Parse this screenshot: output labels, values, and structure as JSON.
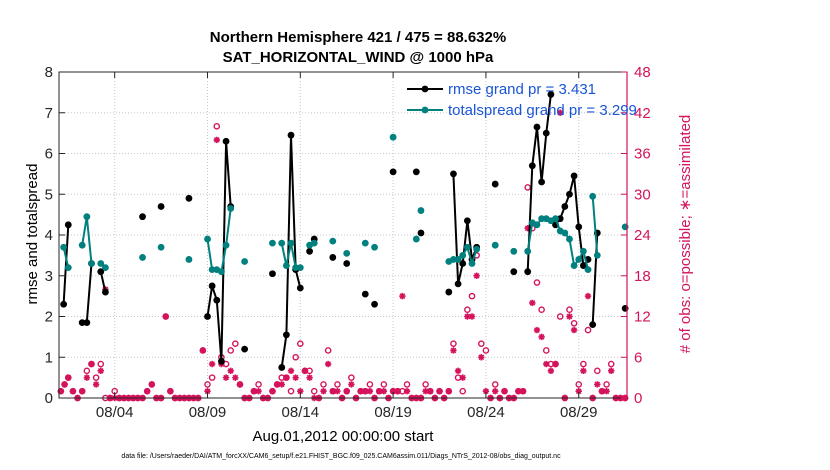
{
  "chart_data": {
    "type": "line",
    "title": "Northern Hemisphere 421 / 475 = 88.632%",
    "subtitle": "SAT_HORIZONTAL_WIND @ 1000 hPa",
    "xlabel": "Aug.01,2012 00:00:00 start",
    "ylabel": "rmse and totalspread",
    "y2label": "# of obs: o=possible; ∗=assimilated",
    "footer": "data file: /Users/raeder/DAI/ATM_forcXX/CAM6_setup/f.e21.FHIST_BGC.f09_025.CAM6assim.011/Diags_NTrS_2012-08/obs_diag_output.nc",
    "xlim": [
      1,
      31.6
    ],
    "xticks": [
      4,
      9,
      14,
      19,
      24,
      29
    ],
    "xticklabels": [
      "08/04",
      "08/09",
      "08/14",
      "08/19",
      "08/24",
      "08/29"
    ],
    "ylim": [
      0,
      8
    ],
    "yticks": [
      0,
      1,
      2,
      3,
      4,
      5,
      6,
      7,
      8
    ],
    "y2lim": [
      0,
      48
    ],
    "y2ticks": [
      0,
      6,
      12,
      18,
      24,
      30,
      36,
      42,
      48
    ],
    "grid": "dotted",
    "legend_position": "top-right",
    "colors": {
      "rmse": "#000000",
      "spread": "#00807f",
      "obs": "#d4135c",
      "legend_text": "#1a55d6"
    },
    "series": [
      {
        "name": "rmse grand pr = 3.431",
        "x": [
          1.25,
          1.5,
          2.25,
          2.5,
          2.75,
          3.0,
          3.25,
          3.5,
          3.75,
          5.5,
          6.5,
          8.0,
          9.0,
          9.25,
          9.5,
          9.75,
          10.0,
          10.25,
          10.5,
          11.0,
          12.5,
          13.0,
          13.25,
          13.5,
          13.75,
          14.0,
          14.25,
          14.5,
          14.75,
          15.25,
          15.75,
          16.5,
          17.5,
          18.0,
          19.0,
          19.5,
          20.25,
          20.5,
          22.0,
          22.25,
          22.5,
          22.75,
          23.0,
          23.25,
          23.5,
          24.5,
          25.5,
          26.25,
          26.5,
          26.75,
          27.0,
          27.25,
          27.5,
          27.75,
          28.0,
          28.25,
          28.5,
          28.75,
          29.0,
          29.25,
          29.5,
          29.75,
          30.0,
          30.5,
          31.5
        ],
        "y": [
          2.3,
          4.25,
          1.85,
          1.85,
          3.3,
          null,
          3.1,
          2.6,
          null,
          4.45,
          4.7,
          4.9,
          2.0,
          2.75,
          2.4,
          0.9,
          6.3,
          4.7,
          null,
          1.2,
          3.05,
          0.75,
          1.55,
          6.45,
          3.15,
          2.7,
          null,
          3.6,
          3.9,
          null,
          3.45,
          3.3,
          2.55,
          2.3,
          5.55,
          null,
          5.55,
          4.05,
          2.6,
          5.5,
          2.8,
          3.3,
          4.35,
          3.4,
          3.7,
          5.25,
          3.1,
          3.1,
          5.7,
          6.65,
          5.3,
          6.5,
          7.45,
          4.25,
          4.4,
          4.7,
          5.0,
          5.45,
          4.2,
          3.25,
          3.4,
          1.8,
          4.05,
          null,
          2.2
        ],
        "connect": [
          false,
          true,
          false,
          true,
          true,
          true,
          true,
          true,
          false,
          false,
          false,
          false,
          false,
          true,
          true,
          true,
          true,
          true,
          false,
          false,
          false,
          false,
          true,
          true,
          true,
          true,
          false,
          false,
          false,
          false,
          false,
          false,
          false,
          false,
          false,
          false,
          false,
          false,
          false,
          false,
          true,
          true,
          true,
          true,
          true,
          false,
          false,
          false,
          true,
          true,
          true,
          true,
          true,
          false,
          true,
          true,
          true,
          true,
          true,
          true,
          true,
          false,
          true,
          false,
          false
        ]
      },
      {
        "name": "totalspread grand pr = 3.299",
        "x": [
          1.25,
          1.5,
          2.25,
          2.5,
          2.75,
          3.0,
          3.25,
          3.5,
          3.75,
          5.5,
          6.5,
          8.0,
          9.0,
          9.25,
          9.5,
          9.75,
          10.0,
          10.25,
          10.5,
          11.0,
          12.5,
          13.0,
          13.25,
          13.5,
          13.75,
          14.0,
          14.25,
          14.5,
          14.75,
          15.25,
          15.75,
          16.5,
          17.5,
          18.0,
          19.0,
          19.5,
          20.25,
          20.5,
          22.0,
          22.25,
          22.5,
          22.75,
          23.0,
          23.25,
          23.5,
          24.5,
          25.5,
          26.25,
          26.5,
          26.75,
          27.0,
          27.25,
          27.5,
          27.75,
          28.0,
          28.25,
          28.5,
          28.75,
          29.0,
          29.25,
          29.5,
          29.75,
          30.0,
          30.5,
          31.5
        ],
        "y": [
          3.7,
          3.2,
          3.75,
          4.45,
          3.3,
          null,
          3.3,
          3.2,
          null,
          3.45,
          3.7,
          3.4,
          3.9,
          3.15,
          3.15,
          3.1,
          3.75,
          4.65,
          null,
          3.35,
          3.8,
          3.8,
          3.25,
          3.8,
          3.2,
          3.2,
          null,
          3.75,
          3.8,
          null,
          3.85,
          3.55,
          3.8,
          3.7,
          6.4,
          null,
          3.9,
          4.6,
          3.35,
          3.4,
          3.4,
          3.5,
          3.7,
          3.3,
          3.65,
          3.75,
          3.6,
          3.6,
          4.3,
          4.25,
          4.4,
          4.4,
          4.35,
          4.4,
          4.1,
          4.05,
          3.9,
          3.25,
          3.4,
          3.6,
          3.15,
          4.95,
          3.5,
          null,
          4.2
        ],
        "connect": [
          false,
          true,
          false,
          true,
          true,
          true,
          true,
          true,
          false,
          false,
          false,
          false,
          false,
          true,
          true,
          true,
          true,
          true,
          false,
          false,
          false,
          false,
          true,
          true,
          true,
          true,
          false,
          false,
          false,
          false,
          false,
          false,
          false,
          false,
          false,
          false,
          false,
          false,
          false,
          false,
          true,
          true,
          true,
          true,
          true,
          false,
          false,
          false,
          true,
          true,
          true,
          true,
          true,
          false,
          true,
          true,
          true,
          true,
          true,
          true,
          true,
          false,
          true,
          false,
          false
        ]
      }
    ],
    "obs_possible": {
      "x": [
        1.1,
        1.3,
        1.5,
        1.75,
        2.0,
        2.25,
        2.5,
        2.75,
        3.0,
        3.25,
        3.5,
        3.75,
        4.0,
        4.25,
        4.5,
        4.75,
        5.0,
        5.25,
        5.5,
        5.75,
        6.0,
        6.25,
        6.5,
        6.75,
        7.0,
        7.25,
        7.5,
        7.75,
        8.0,
        8.25,
        8.5,
        8.75,
        9.0,
        9.25,
        9.5,
        9.75,
        10.0,
        10.25,
        10.5,
        10.75,
        11.0,
        11.25,
        11.5,
        11.75,
        12.0,
        12.25,
        12.5,
        12.75,
        13.0,
        13.25,
        13.5,
        13.75,
        14.0,
        14.25,
        14.5,
        14.75,
        15.0,
        15.25,
        15.5,
        15.75,
        16.0,
        16.25,
        16.5,
        16.75,
        17.0,
        17.25,
        17.5,
        17.75,
        18.0,
        18.25,
        18.5,
        18.75,
        19.0,
        19.25,
        19.5,
        19.75,
        20.0,
        20.25,
        20.5,
        20.75,
        21.0,
        21.25,
        21.5,
        21.75,
        22.0,
        22.25,
        22.5,
        22.75,
        23.0,
        23.25,
        23.5,
        23.75,
        24.0,
        24.25,
        24.5,
        24.75,
        25.0,
        25.25,
        25.5,
        25.75,
        26.0,
        26.25,
        26.5,
        26.75,
        27.0,
        27.25,
        27.5,
        27.75,
        28.0,
        28.25,
        28.5,
        28.75,
        29.0,
        29.25,
        29.5,
        29.75,
        30.0,
        30.25,
        30.5,
        30.75,
        31.0,
        31.25,
        31.5
      ],
      "y": [
        1,
        2,
        3,
        1,
        0,
        1,
        4,
        5,
        3,
        5,
        0,
        0,
        1,
        0,
        0,
        0,
        0,
        0,
        0,
        1,
        2,
        0,
        0,
        12,
        1,
        0,
        0,
        0,
        0,
        0,
        0,
        7,
        2,
        3,
        40,
        6,
        5,
        7,
        8,
        2,
        0,
        0,
        1,
        2,
        0,
        0,
        1,
        2,
        3,
        3,
        1,
        6,
        8,
        4,
        4,
        1,
        0,
        2,
        7,
        1,
        2,
        0,
        1,
        3,
        0,
        1,
        1,
        2,
        0,
        1,
        2,
        0,
        1,
        1,
        1,
        2,
        0,
        0,
        0,
        2,
        1,
        0,
        1,
        0,
        1,
        8,
        3,
        1,
        13,
        15,
        21,
        8,
        7,
        0,
        2,
        0,
        1,
        0,
        0,
        1,
        1,
        31,
        25,
        17,
        13,
        7,
        5,
        5,
        12,
        0,
        13,
        11,
        2,
        5,
        10,
        0,
        4,
        1,
        2,
        5,
        0,
        0,
        0
      ]
    },
    "obs_assimilated": {
      "x": [
        1.1,
        1.3,
        1.5,
        1.75,
        2.0,
        2.25,
        2.5,
        2.75,
        3.0,
        3.25,
        3.5,
        3.75,
        4.0,
        4.25,
        4.5,
        4.75,
        5.0,
        5.25,
        5.5,
        5.75,
        6.0,
        6.25,
        6.5,
        6.75,
        7.0,
        7.25,
        7.5,
        7.75,
        8.0,
        8.25,
        8.5,
        8.75,
        9.0,
        9.25,
        9.5,
        9.75,
        10.0,
        10.25,
        10.5,
        10.75,
        11.0,
        11.25,
        11.5,
        11.75,
        12.0,
        12.25,
        12.5,
        12.75,
        13.0,
        13.25,
        13.5,
        13.75,
        14.0,
        14.25,
        14.5,
        14.75,
        15.0,
        15.25,
        15.5,
        15.75,
        16.0,
        16.25,
        16.5,
        16.75,
        17.0,
        17.25,
        17.5,
        17.75,
        18.0,
        18.25,
        18.5,
        18.75,
        19.0,
        19.25,
        19.5,
        19.75,
        20.0,
        20.25,
        20.5,
        20.75,
        21.0,
        21.25,
        21.5,
        21.75,
        22.0,
        22.25,
        22.5,
        22.75,
        23.0,
        23.25,
        23.5,
        23.75,
        24.0,
        24.25,
        24.5,
        24.75,
        25.0,
        25.25,
        25.5,
        25.75,
        26.0,
        26.25,
        26.5,
        26.75,
        27.0,
        27.25,
        27.5,
        27.75,
        28.0,
        28.25,
        28.5,
        28.75,
        29.0,
        29.25,
        29.5,
        29.75,
        30.0,
        30.25,
        30.5,
        30.75,
        31.0,
        31.25,
        31.5
      ],
      "y": [
        1,
        2,
        3,
        1,
        0,
        1,
        3,
        5,
        2,
        4,
        16,
        0,
        0,
        0,
        0,
        0,
        0,
        0,
        0,
        1,
        2,
        0,
        0,
        12,
        1,
        0,
        0,
        0,
        0,
        0,
        0,
        7,
        1,
        5,
        38,
        5,
        3,
        4,
        3,
        2,
        0,
        0,
        1,
        1,
        0,
        0,
        1,
        2,
        2,
        3,
        4,
        3,
        1,
        4,
        3,
        0,
        0,
        1,
        5,
        1,
        1,
        0,
        1,
        2,
        0,
        1,
        1,
        1,
        0,
        1,
        1,
        0,
        1,
        1,
        15,
        1,
        0,
        0,
        0,
        1,
        1,
        0,
        1,
        0,
        1,
        7,
        4,
        3,
        12,
        12,
        18,
        6,
        1,
        0,
        1,
        0,
        1,
        0,
        0,
        1,
        1,
        25,
        14,
        10,
        9,
        5,
        4,
        5,
        42,
        0,
        12,
        10,
        1,
        4,
        15,
        0,
        2,
        1,
        1,
        4,
        0,
        0,
        0
      ]
    }
  }
}
